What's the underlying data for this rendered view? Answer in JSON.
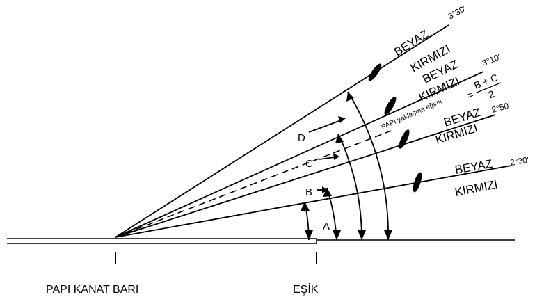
{
  "beams": [
    {
      "color_upper": "BEYAZ",
      "color_lower": "KIRMIZI",
      "angle": "3°30′"
    },
    {
      "color_upper": "BEYAZ",
      "color_lower": "KIRMIZI",
      "angle": "3°10′"
    },
    {
      "color_upper": "BEYAZ",
      "color_lower": "KIRMIZI",
      "angle": "2°50′"
    },
    {
      "color_upper": "BEYAZ",
      "color_lower": "KIRMIZI",
      "angle": "2°30′"
    }
  ],
  "approach_path_label": "PAPI yaklaşma eğimi",
  "formula": {
    "lhs": "=",
    "numerator": "B + C",
    "denominator": "2"
  },
  "angle_labels": [
    "A",
    "B",
    "C",
    "D"
  ],
  "bottom_labels": {
    "wingbar": "PAPI KANAT BARI",
    "threshold": "EŞİK"
  }
}
